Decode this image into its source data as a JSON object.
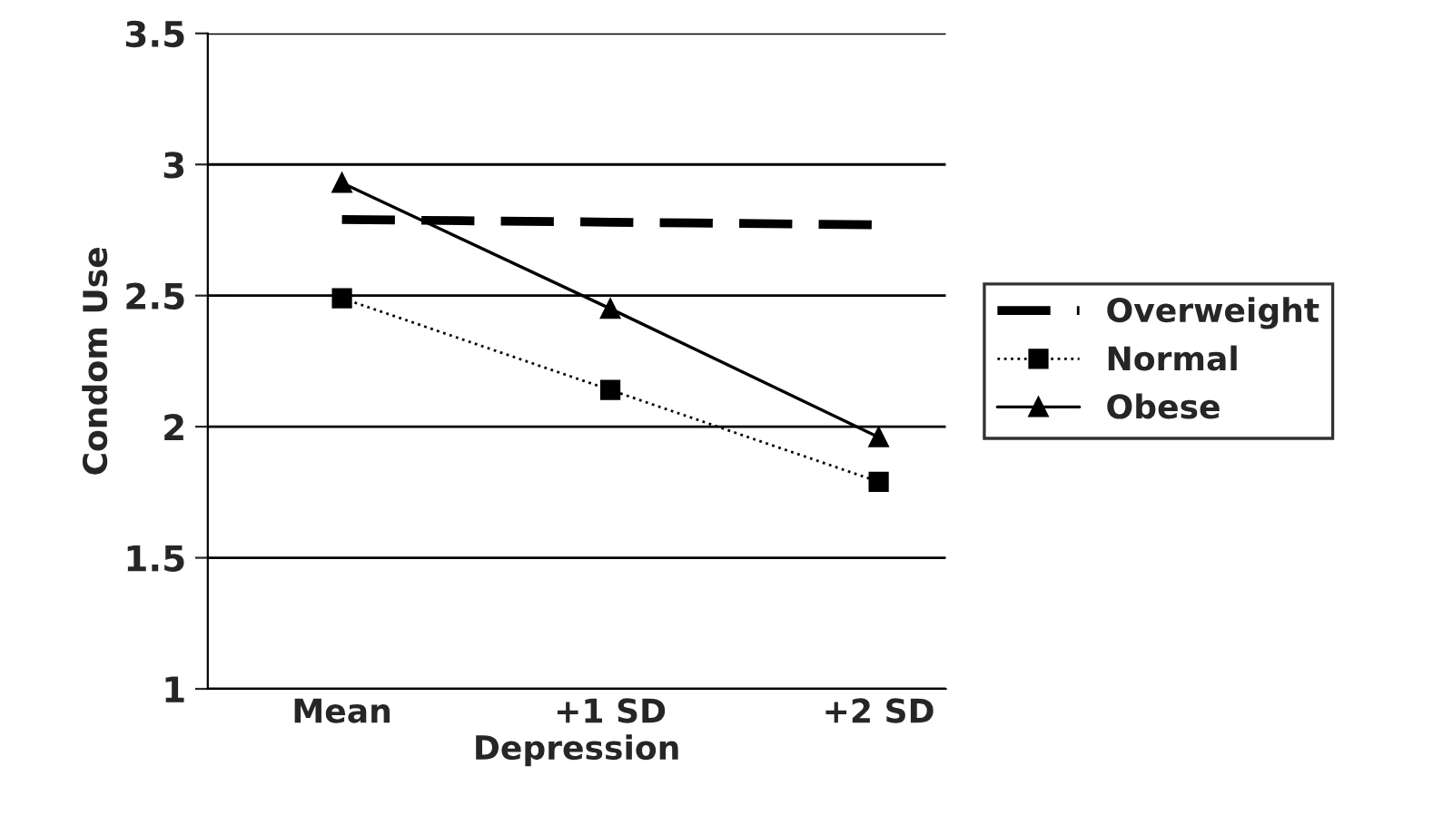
{
  "chart_data": {
    "type": "line",
    "xlabel": "Depression",
    "ylabel": "Condom Use",
    "categories": [
      "Mean",
      "+1 SD",
      "+2 SD"
    ],
    "series": [
      {
        "name": "Overweight",
        "color": "#000000",
        "values": [
          2.79,
          2.78,
          2.77
        ],
        "line_style": "dashed",
        "marker": "none"
      },
      {
        "name": "Normal",
        "color": "#000000",
        "values": [
          2.49,
          2.14,
          1.79
        ],
        "line_style": "dotted",
        "marker": "square"
      },
      {
        "name": "Obese",
        "color": "#000000",
        "values": [
          2.93,
          2.45,
          1.96
        ],
        "line_style": "solid",
        "marker": "triangle"
      }
    ],
    "ylim": [
      1,
      3.5
    ],
    "yticks": [
      1,
      "1.5",
      2,
      "2.5",
      3,
      "3.5"
    ],
    "grid": "y",
    "legend": "right"
  }
}
